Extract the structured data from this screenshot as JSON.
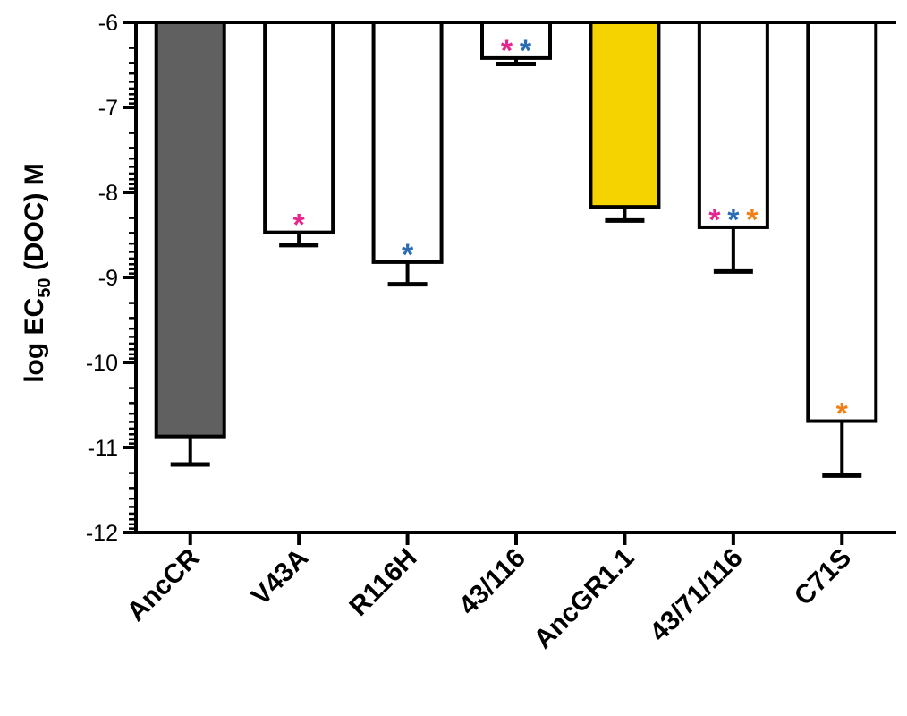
{
  "chart_data": {
    "type": "bar",
    "ylabel": {
      "prefix": "log EC",
      "subscript": "50",
      "suffix": " (DOC) M"
    },
    "ylim": [
      -12,
      -6
    ],
    "ticks": [
      -6,
      -7,
      -8,
      -9,
      -10,
      -11,
      -12
    ],
    "tick_labels": [
      "-6",
      "-7",
      "-8",
      "-9",
      "-10",
      "-11",
      "-12"
    ],
    "baseline": -6,
    "categories": [
      "AncCR",
      "V43A",
      "R116H",
      "43/116",
      "AncGR1.1",
      "43/71/116",
      "C71S"
    ],
    "values": [
      -10.87,
      -8.47,
      -8.82,
      -6.42,
      -8.17,
      -8.41,
      -10.69
    ],
    "error_low": [
      -11.2,
      -8.62,
      -9.08,
      -6.49,
      -8.33,
      -8.93,
      -11.33
    ],
    "fills": [
      "#606060",
      "#ffffff",
      "#ffffff",
      "#ffffff",
      "#f5d300",
      "#ffffff",
      "#ffffff"
    ],
    "annotations": [
      [],
      [
        {
          "text": "*",
          "color": "#e6268c"
        }
      ],
      [
        {
          "text": "*",
          "color": "#2a6db3"
        }
      ],
      [
        {
          "text": "*",
          "color": "#e6268c"
        },
        {
          "text": "*",
          "color": "#2a6db3"
        }
      ],
      [],
      [
        {
          "text": "*",
          "color": "#e6268c"
        },
        {
          "text": "*",
          "color": "#2a6db3"
        },
        {
          "text": "*",
          "color": "#f07f16"
        }
      ],
      [
        {
          "text": "*",
          "color": "#f07f16"
        }
      ]
    ]
  }
}
